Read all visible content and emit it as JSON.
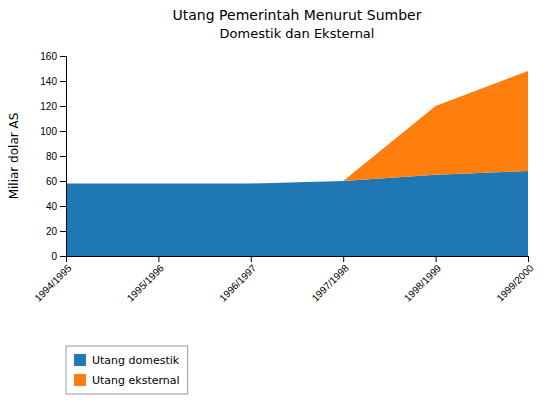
{
  "chart_data": {
    "type": "area",
    "stacked": true,
    "title": "Utang Pemerintah Menurut Sumber",
    "subtitle": "Domestik dan Eksternal",
    "ylabel": "Miliar dolar AS",
    "categories": [
      "1994/1995",
      "1995/1996",
      "1996/1997",
      "1997/1998",
      "1998/1999",
      "1999/2000"
    ],
    "series": [
      {
        "name": "Utang domestik",
        "values": [
          58,
          58,
          58,
          60,
          65,
          68
        ]
      },
      {
        "name": "Utang eksternal",
        "values": [
          0,
          0,
          0,
          0,
          55,
          80
        ]
      }
    ],
    "ylim": [
      0,
      160
    ],
    "yticks": [
      0,
      20,
      40,
      60,
      80,
      100,
      120,
      140,
      160
    ],
    "grid": false,
    "legend": "lower left"
  }
}
